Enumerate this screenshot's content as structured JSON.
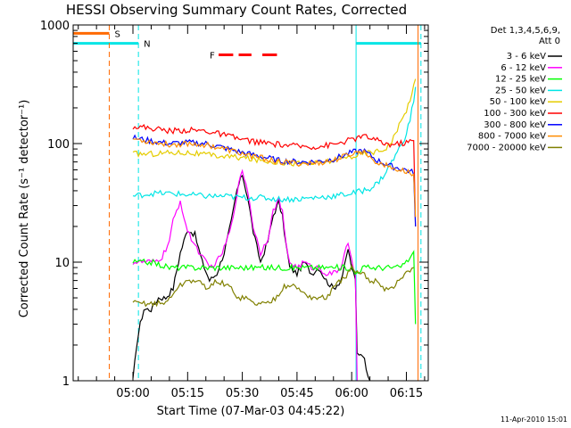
{
  "chart_data": {
    "type": "line",
    "title": "HESSI Observing Summary Count Rates, Corrected",
    "xlabel": "Start Time (07-Mar-03 04:45:22)",
    "ylabel": "Corrected Count Rate (s⁻¹ detector⁻¹)",
    "yscale": "log",
    "ylim": [
      1,
      1000
    ],
    "xlim_minutes": [
      -1.4,
      96.0
    ],
    "y_tick_labels": [
      "1",
      "10",
      "100",
      "1000"
    ],
    "x_ticks": [
      {
        "m": 15,
        "label": "05:00"
      },
      {
        "m": 30,
        "label": "05:15"
      },
      {
        "m": 45,
        "label": "05:30"
      },
      {
        "m": 60,
        "label": "05:45"
      },
      {
        "m": 75,
        "label": "06:00"
      },
      {
        "m": 90,
        "label": "06:15"
      }
    ],
    "legend_header": [
      "Det 1,3,4,5,6,9,",
      "Att 0"
    ],
    "legend_position": "right",
    "timestamp": "11-Apr-2010 15:01",
    "flags": [
      {
        "label": "S",
        "color": "#ff6a00",
        "segments": [
          [
            -1.4,
            8.5
          ]
        ],
        "level": 850
      },
      {
        "label": "N",
        "color": "#00e5e5",
        "segments": [
          [
            -1.4,
            16.5
          ],
          [
            76.2,
            94.0
          ]
        ],
        "level": 700
      },
      {
        "label": "F",
        "color": "#ff0000",
        "segments": [
          [
            38.5,
            42.5
          ],
          [
            44.0,
            47.5
          ],
          [
            50.5,
            54.5
          ]
        ],
        "level": 560
      }
    ],
    "vlines": [
      {
        "m": 8.5,
        "color": "#ff6a00",
        "dash": true
      },
      {
        "m": 16.5,
        "color": "#00e5e5",
        "dash": true
      },
      {
        "m": 76.2,
        "color": "#00e5e5",
        "dash": false
      },
      {
        "m": 93.2,
        "color": "#ff6a00",
        "dash": false
      },
      {
        "m": 94.0,
        "color": "#00e5e5",
        "dash": true
      }
    ],
    "series": [
      {
        "name": "3 - 6 keV",
        "color": "#000000",
        "x": [
          15,
          16,
          17,
          18,
          19,
          20,
          22,
          24,
          26,
          28,
          30,
          32,
          34,
          36,
          38,
          40,
          42,
          43.5,
          45,
          46.5,
          48,
          50,
          52,
          53.5,
          55,
          56,
          57,
          58,
          60,
          62,
          64,
          66,
          68,
          70,
          72,
          73,
          74,
          75,
          76,
          76.5,
          78,
          80
        ],
        "y": [
          1,
          2,
          3,
          4,
          4,
          4,
          5,
          5,
          6,
          12,
          19,
          17,
          10,
          7,
          8,
          12,
          22,
          40,
          55,
          35,
          18,
          10,
          15,
          25,
          32,
          24,
          14,
          9,
          8,
          10,
          8,
          9,
          7,
          6,
          7,
          9,
          13,
          9,
          7,
          1.7,
          1.7,
          1.0
        ]
      },
      {
        "name": "6 - 12 keV",
        "color": "#ff00ff",
        "x": [
          15,
          17,
          19,
          21,
          23,
          25,
          26,
          28,
          29,
          30,
          32,
          34,
          36,
          38,
          40,
          42,
          43.5,
          45,
          46.5,
          48,
          50,
          52,
          53.5,
          55,
          56,
          57,
          58,
          60,
          62,
          64,
          66,
          68,
          70,
          72,
          73,
          74,
          75,
          76,
          76.5
        ],
        "y": [
          10,
          10,
          10,
          10,
          11,
          15,
          22,
          33,
          24,
          18,
          14,
          11,
          9,
          10,
          13,
          20,
          38,
          60,
          40,
          20,
          12,
          16,
          27,
          34,
          26,
          14,
          10,
          9,
          10,
          9,
          9,
          8,
          8,
          9,
          12,
          14,
          10,
          8,
          1.0
        ]
      },
      {
        "name": "12 - 25 keV",
        "color": "#00ff00",
        "x": [
          15,
          20,
          25,
          30,
          35,
          40,
          45,
          50,
          55,
          60,
          65,
          70,
          75,
          76,
          78,
          80,
          82,
          84,
          86,
          88,
          90,
          91,
          92,
          92.5
        ],
        "y": [
          10,
          10,
          9,
          9,
          9,
          9,
          9,
          9,
          9,
          9,
          9,
          9,
          9,
          8,
          9,
          9,
          9,
          9,
          9,
          9,
          10,
          11,
          12,
          3
        ]
      },
      {
        "name": "25 - 50 keV",
        "color": "#00e5e5",
        "x": [
          15,
          20,
          25,
          30,
          35,
          40,
          45,
          50,
          55,
          60,
          65,
          70,
          75,
          78,
          80,
          82,
          84,
          86,
          88,
          90,
          91,
          92,
          92.5
        ],
        "y": [
          36,
          38,
          38,
          37,
          36,
          36,
          35,
          35,
          34,
          34,
          35,
          36,
          38,
          40,
          42,
          46,
          55,
          70,
          90,
          120,
          160,
          230,
          300
        ]
      },
      {
        "name": "50 - 100 keV",
        "color": "#e5cc00",
        "x": [
          15,
          20,
          25,
          30,
          35,
          40,
          45,
          50,
          55,
          60,
          65,
          70,
          75,
          78,
          80,
          82,
          84,
          86,
          88,
          90,
          91,
          92,
          92.5
        ],
        "y": [
          82,
          82,
          84,
          84,
          80,
          78,
          76,
          72,
          70,
          68,
          68,
          72,
          78,
          82,
          85,
          86,
          90,
          105,
          140,
          190,
          240,
          300,
          350
        ]
      },
      {
        "name": "100 - 300 keV",
        "color": "#ff0000",
        "x": [
          15,
          20,
          25,
          30,
          35,
          40,
          45,
          50,
          55,
          60,
          65,
          70,
          75,
          78,
          80,
          82,
          84,
          86,
          88,
          90,
          91,
          92,
          92.5
        ],
        "y": [
          140,
          135,
          128,
          130,
          128,
          118,
          108,
          102,
          98,
          95,
          94,
          98,
          108,
          115,
          112,
          106,
          100,
          98,
          100,
          102,
          104,
          106,
          20
        ]
      },
      {
        "name": "300 - 800 keV",
        "color": "#0000ff",
        "x": [
          15,
          20,
          25,
          30,
          35,
          40,
          45,
          50,
          55,
          60,
          65,
          70,
          75,
          78,
          80,
          82,
          84,
          86,
          88,
          90,
          91,
          92,
          92.5
        ],
        "y": [
          112,
          105,
          100,
          102,
          100,
          92,
          84,
          78,
          72,
          70,
          70,
          74,
          84,
          88,
          80,
          72,
          68,
          64,
          62,
          60,
          58,
          57,
          20
        ]
      },
      {
        "name": "800 - 7000 keV",
        "color": "#ff8c00",
        "x": [
          15,
          20,
          25,
          30,
          35,
          40,
          45,
          50,
          55,
          60,
          65,
          70,
          75,
          78,
          80,
          82,
          84,
          86,
          88,
          90,
          91,
          92,
          92.5
        ],
        "y": [
          110,
          103,
          98,
          100,
          98,
          90,
          82,
          76,
          70,
          68,
          68,
          72,
          82,
          86,
          78,
          70,
          66,
          62,
          60,
          58,
          56,
          54,
          24
        ]
      },
      {
        "name": "7000 - 20000 keV",
        "color": "#808000",
        "x": [
          15,
          18,
          21,
          24,
          27,
          30,
          32,
          34,
          36,
          38,
          40,
          42,
          44,
          46,
          48,
          50,
          52,
          54,
          56,
          58,
          60,
          62,
          64,
          66,
          68,
          70,
          72,
          74,
          75,
          76,
          78,
          80,
          82,
          84,
          86,
          88,
          90,
          92
        ],
        "y": [
          4.5,
          4.5,
          4.5,
          4.5,
          6,
          7,
          7,
          6.5,
          6,
          7,
          6.5,
          6,
          5,
          5,
          4.5,
          4.5,
          4.5,
          5,
          6,
          6.5,
          6,
          5.5,
          5,
          5,
          5,
          6,
          7,
          8,
          9,
          8,
          8,
          7,
          7,
          6,
          6,
          7,
          8,
          9
        ]
      }
    ]
  }
}
